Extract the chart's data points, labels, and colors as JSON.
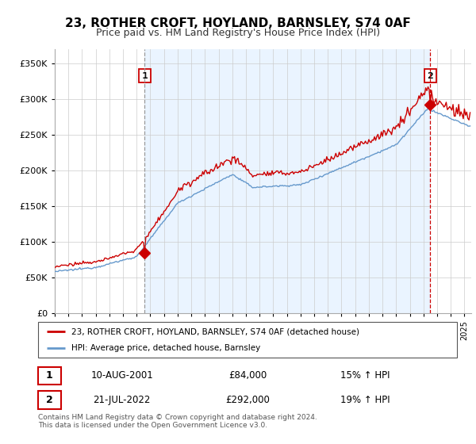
{
  "title": "23, ROTHER CROFT, HOYLAND, BARNSLEY, S74 0AF",
  "subtitle": "Price paid vs. HM Land Registry's House Price Index (HPI)",
  "property_label": "23, ROTHER CROFT, HOYLAND, BARNSLEY, S74 0AF (detached house)",
  "hpi_label": "HPI: Average price, detached house, Barnsley",
  "transaction1_date": "10-AUG-2001",
  "transaction1_price": "£84,000",
  "transaction1_hpi": "15% ↑ HPI",
  "transaction2_date": "21-JUL-2022",
  "transaction2_price": "£292,000",
  "transaction2_hpi": "19% ↑ HPI",
  "footer": "Contains HM Land Registry data © Crown copyright and database right 2024.\nThis data is licensed under the Open Government Licence v3.0.",
  "property_color": "#cc0000",
  "hpi_color": "#6699cc",
  "vline1_color": "#999999",
  "vline2_color": "#cc0000",
  "shade_color": "#ddeeff",
  "box_color": "#cc0000",
  "ylim_min": 0,
  "ylim_max": 370000,
  "xlim_min": 1995,
  "xlim_max": 2025.5,
  "t1_year": 2001.583,
  "t2_year": 2022.5,
  "t1_price": 84000,
  "t2_price": 292000
}
